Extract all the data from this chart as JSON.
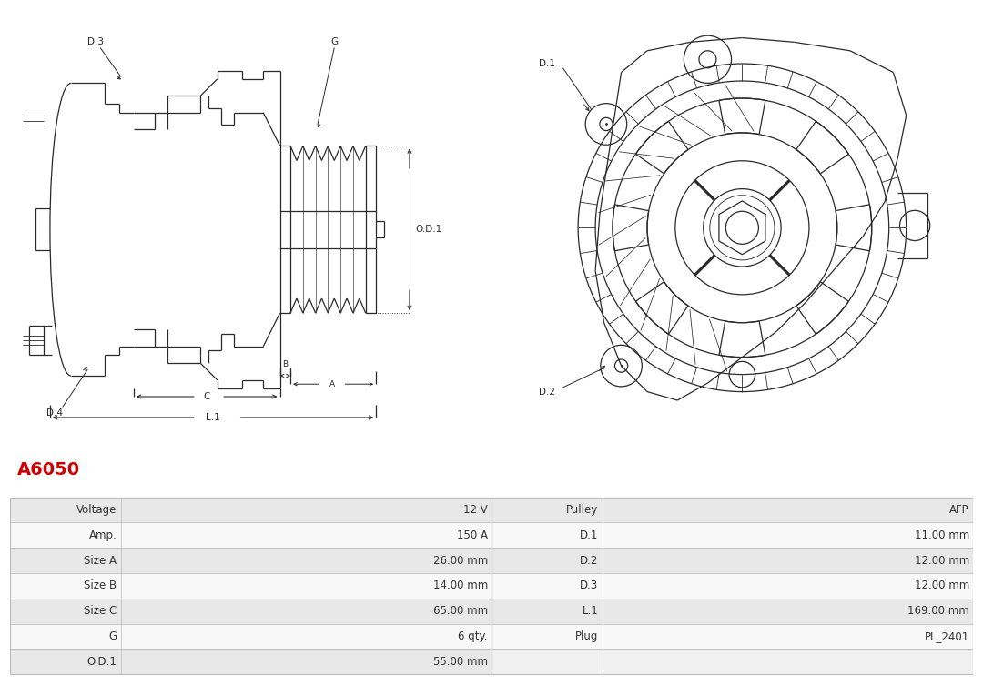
{
  "title": "A6050",
  "title_color": "#cc0000",
  "title_fontsize": 14,
  "bg_color": "#ffffff",
  "table_row_bg_odd": "#e8e8e8",
  "table_row_bg_even": "#f8f8f8",
  "table_border_color": "#bbbbbb",
  "table_text_color": "#333333",
  "table_fontsize": 9,
  "rows": [
    [
      "Voltage",
      "12 V",
      "Pulley",
      "AFP"
    ],
    [
      "Amp.",
      "150 A",
      "D.1",
      "11.00 mm"
    ],
    [
      "Size A",
      "26.00 mm",
      "D.2",
      "12.00 mm"
    ],
    [
      "Size B",
      "14.00 mm",
      "D.3",
      "12.00 mm"
    ],
    [
      "Size C",
      "65.00 mm",
      "L.1",
      "169.00 mm"
    ],
    [
      "G",
      "6 qty.",
      "Plug",
      "PL_2401"
    ],
    [
      "O.D.1",
      "55.00 mm",
      "",
      ""
    ]
  ],
  "drawing_line_color": "#2a2a2a",
  "annotation_color": "#2a2a2a",
  "annotation_fontsize": 7.5
}
